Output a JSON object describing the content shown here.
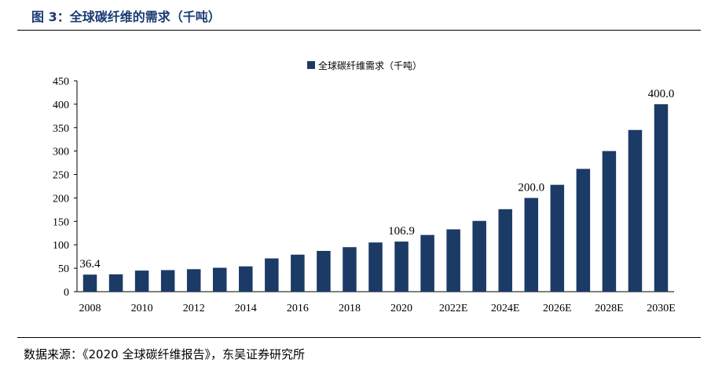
{
  "header": {
    "figure_title": "图 3：全球碳纤维的需求（千吨）"
  },
  "footer": {
    "source": "数据来源：《2020 全球碳纤维报告》，东吴证券研究所"
  },
  "colors": {
    "bar": "#1b3a66",
    "title": "#1a3a73"
  },
  "chart_data": {
    "type": "bar",
    "title": "",
    "xlabel": "",
    "ylabel": "",
    "ylim": [
      0,
      450
    ],
    "yticks": [
      0,
      50,
      100,
      150,
      200,
      250,
      300,
      350,
      400,
      450
    ],
    "legend": {
      "position": "top-center"
    },
    "grid": false,
    "categories": [
      "2008",
      "2009",
      "2010",
      "2011",
      "2012",
      "2013",
      "2014",
      "2015",
      "2016",
      "2017",
      "2018",
      "2019",
      "2020",
      "2021",
      "2022E",
      "2023E",
      "2024E",
      "2025E",
      "2026E",
      "2027E",
      "2028E",
      "2029E",
      "2030E"
    ],
    "xtick_labels": [
      "2008",
      "2010",
      "2012",
      "2014",
      "2016",
      "2018",
      "2020",
      "2022E",
      "2024E",
      "2026E",
      "2028E",
      "2030E"
    ],
    "series": [
      {
        "name": "全球碳纤维需求（千吨）",
        "values": [
          36.4,
          37,
          45,
          46,
          48,
          51,
          54,
          71,
          79,
          87,
          95,
          105,
          106.9,
          121,
          133,
          151,
          176,
          200.0,
          228,
          262,
          300,
          345,
          400.0
        ]
      }
    ],
    "data_labels": [
      {
        "category": "2008",
        "text": "36.4"
      },
      {
        "category": "2020",
        "text": "106.9"
      },
      {
        "category": "2025E",
        "text": "200.0"
      },
      {
        "category": "2030E",
        "text": "400.0"
      }
    ]
  }
}
